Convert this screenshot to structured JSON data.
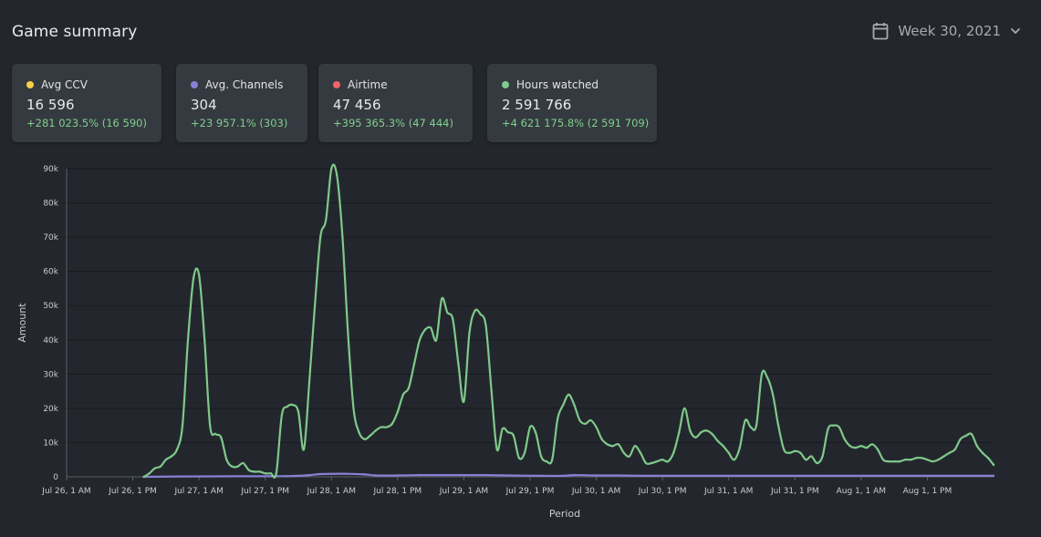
{
  "header": {
    "title": "Game summary",
    "week_label": "Week 30, 2021"
  },
  "cards": [
    {
      "label": "Avg CCV",
      "value": "16 596",
      "change": "+281 023.5% (16 590)",
      "color": "#f5d24b"
    },
    {
      "label": "Avg. Channels",
      "value": "304",
      "change": "+23 957.1% (303)",
      "color": "#8a7fd6"
    },
    {
      "label": "Airtime",
      "value": "47 456",
      "change": "+395 365.3% (47 444)",
      "color": "#ef6464"
    },
    {
      "label": "Hours watched",
      "value": "2 591 766",
      "change": "+4 621 175.8% (2 591 709)",
      "color": "#7fc98a"
    }
  ],
  "chart_data": {
    "type": "line",
    "xlabel": "Period",
    "ylabel": "Amount",
    "ylim": [
      0,
      90000
    ],
    "xlim": [
      0,
      162
    ],
    "y_ticks": [
      0,
      10000,
      20000,
      30000,
      40000,
      50000,
      60000,
      70000,
      80000,
      90000
    ],
    "y_tick_labels": [
      "0",
      "10k",
      "20k",
      "30k",
      "40k",
      "50k",
      "60k",
      "70k",
      "80k",
      "90k"
    ],
    "x_ticks": [
      0,
      12,
      24,
      36,
      48,
      60,
      72,
      84,
      96,
      108,
      120,
      132,
      144,
      156
    ],
    "x_tick_labels": [
      "Jul 26, 1 AM",
      "Jul 26, 1 PM",
      "Jul 27, 1 AM",
      "Jul 27, 1 PM",
      "Jul 28, 1 AM",
      "Jul 28, 1 PM",
      "Jul 29, 1 AM",
      "Jul 29, 1 PM",
      "Jul 30, 1 AM",
      "Jul 30, 1 PM",
      "Jul 31, 1 AM",
      "Jul 31, 1 PM",
      "Aug 1, 1 AM",
      "Aug 1, 1 PM"
    ],
    "grid": true,
    "series": [
      {
        "color": "#7fc98a",
        "points": [
          [
            14,
            0
          ],
          [
            15,
            1000
          ],
          [
            16,
            2500
          ],
          [
            17,
            3000
          ],
          [
            18,
            5000
          ],
          [
            19,
            6000
          ],
          [
            20,
            8000
          ],
          [
            21,
            15000
          ],
          [
            22,
            40000
          ],
          [
            23,
            58000
          ],
          [
            24,
            59000
          ],
          [
            25,
            40000
          ],
          [
            26,
            15000
          ],
          [
            27,
            12500
          ],
          [
            28,
            11500
          ],
          [
            29,
            5000
          ],
          [
            30,
            3000
          ],
          [
            31,
            3000
          ],
          [
            32,
            4000
          ],
          [
            33,
            2000
          ],
          [
            34,
            1500
          ],
          [
            35,
            1500
          ],
          [
            36,
            1000
          ],
          [
            37,
            1000
          ],
          [
            38,
            1000
          ],
          [
            39,
            18000
          ],
          [
            40,
            20500
          ],
          [
            41,
            21000
          ],
          [
            42,
            19000
          ],
          [
            43,
            8000
          ],
          [
            44,
            28000
          ],
          [
            45,
            50000
          ],
          [
            46,
            70000
          ],
          [
            47,
            75000
          ],
          [
            48,
            90000
          ],
          [
            49,
            88000
          ],
          [
            50,
            70000
          ],
          [
            51,
            42000
          ],
          [
            52,
            20000
          ],
          [
            53,
            13000
          ],
          [
            54,
            11000
          ],
          [
            55,
            12000
          ],
          [
            56,
            13500
          ],
          [
            57,
            14500
          ],
          [
            58,
            14500
          ],
          [
            59,
            15500
          ],
          [
            60,
            19000
          ],
          [
            61,
            24000
          ],
          [
            62,
            26000
          ],
          [
            63,
            33000
          ],
          [
            64,
            40000
          ],
          [
            65,
            43000
          ],
          [
            66,
            43500
          ],
          [
            67,
            40000
          ],
          [
            68,
            52000
          ],
          [
            69,
            48000
          ],
          [
            70,
            46000
          ],
          [
            71,
            33000
          ],
          [
            72,
            22000
          ],
          [
            73,
            42000
          ],
          [
            74,
            48500
          ],
          [
            75,
            47500
          ],
          [
            76,
            44000
          ],
          [
            77,
            25000
          ],
          [
            78,
            8000
          ],
          [
            79,
            14000
          ],
          [
            80,
            13000
          ],
          [
            81,
            12000
          ],
          [
            82,
            5500
          ],
          [
            83,
            7000
          ],
          [
            84,
            14500
          ],
          [
            85,
            13000
          ],
          [
            86,
            6000
          ],
          [
            87,
            4500
          ],
          [
            88,
            5000
          ],
          [
            89,
            17000
          ],
          [
            90,
            21000
          ],
          [
            91,
            24000
          ],
          [
            92,
            21000
          ],
          [
            93,
            16500
          ],
          [
            94,
            15500
          ],
          [
            95,
            16500
          ],
          [
            96,
            14500
          ],
          [
            97,
            11000
          ],
          [
            98,
            9500
          ],
          [
            99,
            9000
          ],
          [
            100,
            9500
          ],
          [
            101,
            7000
          ],
          [
            102,
            6000
          ],
          [
            103,
            9000
          ],
          [
            104,
            7000
          ],
          [
            105,
            4000
          ],
          [
            106,
            4000
          ],
          [
            107,
            4500
          ],
          [
            108,
            5000
          ],
          [
            109,
            4500
          ],
          [
            110,
            7000
          ],
          [
            111,
            13000
          ],
          [
            112,
            20000
          ],
          [
            113,
            13500
          ],
          [
            114,
            11500
          ],
          [
            115,
            13000
          ],
          [
            116,
            13500
          ],
          [
            117,
            12500
          ],
          [
            118,
            10500
          ],
          [
            119,
            9000
          ],
          [
            120,
            7000
          ],
          [
            121,
            5000
          ],
          [
            122,
            8500
          ],
          [
            123,
            16500
          ],
          [
            124,
            14500
          ],
          [
            125,
            15000
          ],
          [
            126,
            30000
          ],
          [
            127,
            29000
          ],
          [
            128,
            24000
          ],
          [
            129,
            15000
          ],
          [
            130,
            8000
          ],
          [
            131,
            7000
          ],
          [
            132,
            7500
          ],
          [
            133,
            7000
          ],
          [
            134,
            5000
          ],
          [
            135,
            6000
          ],
          [
            136,
            4000
          ],
          [
            137,
            6000
          ],
          [
            138,
            14000
          ],
          [
            139,
            15000
          ],
          [
            140,
            14500
          ],
          [
            141,
            11000
          ],
          [
            142,
            9000
          ],
          [
            143,
            8500
          ],
          [
            144,
            9000
          ],
          [
            145,
            8500
          ],
          [
            146,
            9500
          ],
          [
            147,
            8000
          ],
          [
            148,
            5000
          ],
          [
            149,
            4500
          ],
          [
            150,
            4500
          ],
          [
            151,
            4500
          ],
          [
            152,
            5000
          ],
          [
            153,
            5000
          ],
          [
            154,
            5500
          ],
          [
            155,
            5500
          ],
          [
            156,
            5000
          ],
          [
            157,
            4500
          ],
          [
            158,
            5000
          ],
          [
            159,
            6000
          ],
          [
            160,
            7000
          ],
          [
            161,
            8000
          ],
          [
            162,
            11000
          ],
          [
            163,
            12000
          ],
          [
            164,
            12500
          ],
          [
            165,
            9000
          ],
          [
            166,
            7000
          ],
          [
            167,
            5500
          ],
          [
            168,
            3500
          ]
        ]
      },
      {
        "color": "#8a7fd6",
        "points": [
          [
            14,
            0
          ],
          [
            20,
            100
          ],
          [
            30,
            150
          ],
          [
            40,
            200
          ],
          [
            44,
            500
          ],
          [
            46,
            800
          ],
          [
            50,
            900
          ],
          [
            54,
            700
          ],
          [
            56,
            400
          ],
          [
            60,
            400
          ],
          [
            64,
            500
          ],
          [
            68,
            500
          ],
          [
            72,
            500
          ],
          [
            76,
            500
          ],
          [
            80,
            400
          ],
          [
            86,
            300
          ],
          [
            90,
            300
          ],
          [
            92,
            500
          ],
          [
            96,
            400
          ],
          [
            100,
            400
          ],
          [
            104,
            300
          ],
          [
            108,
            300
          ],
          [
            112,
            300
          ],
          [
            120,
            300
          ],
          [
            128,
            300
          ],
          [
            136,
            300
          ],
          [
            144,
            300
          ],
          [
            152,
            300
          ],
          [
            160,
            300
          ],
          [
            168,
            300
          ]
        ]
      }
    ]
  }
}
